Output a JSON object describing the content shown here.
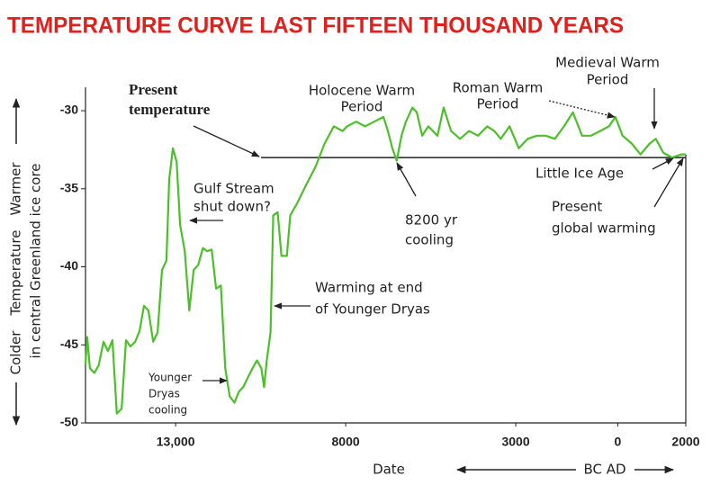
{
  "chart_data": {
    "type": "line",
    "title": "TEMPERATURE CURVE LAST FIFTEEN THOUSAND YEARS",
    "y_label": [
      "Colder",
      "Temperature",
      "Warmer"
    ],
    "y_label_2": "in central Greenland ice core",
    "x_label": "Date",
    "era_label": "BC AD",
    "xlim": [
      -15650,
      2000
    ],
    "ylim": [
      -50,
      -28.5
    ],
    "xticks": [
      {
        "value": -13000,
        "label": "13,000"
      },
      {
        "value": -8000,
        "label": "8000"
      },
      {
        "value": -3000,
        "label": "3000"
      },
      0,
      2000
    ],
    "yticks": [
      -50,
      -45,
      -40,
      -35,
      -30
    ],
    "hline": -33,
    "series": [
      {
        "color": "#4cbf2a",
        "x": [
          -15650,
          -15600,
          -15520,
          -15390,
          -15260,
          -15120,
          -14990,
          -14860,
          -14730,
          -14590,
          -14460,
          -14330,
          -14190,
          -14060,
          -13930,
          -13800,
          -13660,
          -13530,
          -13400,
          -13270,
          -13190,
          -13080,
          -12970,
          -12870,
          -12730,
          -12600,
          -12470,
          -12340,
          -12200,
          -12070,
          -11940,
          -11810,
          -11670,
          -11540,
          -11410,
          -11270,
          -11140,
          -11010,
          -10880,
          -10740,
          -10610,
          -10480,
          -10400,
          -10320,
          -10210,
          -10130,
          -10000,
          -9890,
          -9730,
          -9630,
          -9420,
          -9150,
          -8890,
          -8620,
          -8350,
          -8090,
          -7960,
          -7690,
          -7430,
          -7160,
          -6890,
          -6760,
          -6630,
          -6500,
          -6360,
          -6230,
          -6040,
          -5910,
          -5750,
          -5570,
          -5300,
          -5120,
          -4900,
          -4640,
          -4370,
          -4110,
          -3840,
          -3630,
          -3440,
          -3180,
          -2910,
          -2650,
          -2380,
          -2120,
          -1850,
          -1580,
          -1320,
          -1050,
          -790,
          -520,
          -260,
          -70,
          140,
          410,
          670,
          940,
          1120,
          1340,
          1600,
          1870,
          2000
        ],
        "values": [
          -46.3,
          -44.5,
          -46.5,
          -46.8,
          -46.3,
          -44.8,
          -45.4,
          -44.7,
          -49.4,
          -49.1,
          -44.7,
          -45.1,
          -44.8,
          -44.1,
          -42.5,
          -42.8,
          -44.8,
          -44.2,
          -40.2,
          -39.6,
          -34.4,
          -32.4,
          -33.3,
          -37.3,
          -39.0,
          -42.8,
          -40.2,
          -39.9,
          -38.8,
          -39.0,
          -38.9,
          -41.4,
          -41.2,
          -46.5,
          -48.3,
          -48.7,
          -48.0,
          -47.7,
          -47.1,
          -46.5,
          -46.0,
          -46.5,
          -47.7,
          -46.0,
          -44.2,
          -36.7,
          -36.5,
          -39.3,
          -39.3,
          -36.7,
          -35.9,
          -34.7,
          -33.6,
          -32.1,
          -31.0,
          -31.3,
          -31.0,
          -30.7,
          -31.0,
          -30.7,
          -30.4,
          -31.3,
          -32.4,
          -33.2,
          -31.6,
          -30.7,
          -29.8,
          -30.1,
          -31.6,
          -31.0,
          -31.6,
          -29.8,
          -31.3,
          -31.8,
          -31.3,
          -31.6,
          -31.0,
          -31.3,
          -31.8,
          -31.0,
          -32.4,
          -31.8,
          -31.6,
          -31.6,
          -31.8,
          -31.0,
          -30.1,
          -31.6,
          -31.6,
          -31.3,
          -31.0,
          -30.4,
          -31.6,
          -32.1,
          -32.8,
          -32.1,
          -31.8,
          -32.7,
          -33.0,
          -32.8,
          -32.8
        ]
      }
    ],
    "annotations": [
      {
        "text": [
          "Present",
          "temperature"
        ]
      },
      {
        "text": [
          "Holocene Warm",
          "Period"
        ]
      },
      {
        "text": [
          "Roman Warm",
          "Period"
        ]
      },
      {
        "text": [
          "Medieval Warm",
          "Period"
        ]
      },
      {
        "text": [
          "Gulf Stream",
          "shut down?"
        ]
      },
      {
        "text": [
          "8200 yr",
          "cooling"
        ]
      },
      {
        "text": [
          "Little Ice Age"
        ]
      },
      {
        "text": [
          "Present",
          "global warming"
        ]
      },
      {
        "text": [
          "Warming at end",
          "of Younger Dryas"
        ]
      },
      {
        "text": [
          "Younger",
          "Dryas",
          "cooling"
        ]
      }
    ]
  }
}
